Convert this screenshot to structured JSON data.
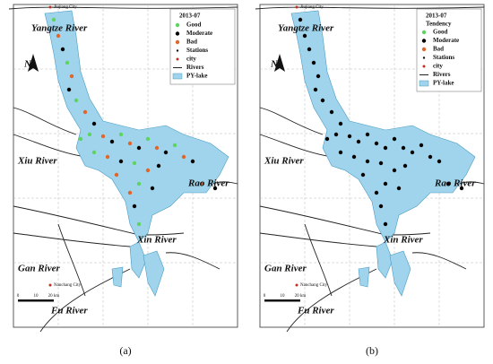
{
  "panels": [
    {
      "label": "(a)",
      "legend_title": "2013-07",
      "legend": [
        "Good",
        "Moderate",
        "Bad",
        "Stations",
        "city",
        "Rivers",
        "PY-lake"
      ],
      "rivers": [
        "Yangtze River",
        "Xiu River",
        "Rao River",
        "Xin River",
        "Gan River",
        "Fu River"
      ],
      "cities": [
        "Jiujiang City",
        "Nanchang City"
      ],
      "north": "N",
      "scale": [
        "0",
        "10",
        "20 km"
      ]
    },
    {
      "label": "(b)",
      "legend_title": "2013-07",
      "legend_subtitle": "Tendency",
      "legend": [
        "Good",
        "Moderate",
        "Bad",
        "Stations",
        "city",
        "Rivers",
        "PY-lake"
      ],
      "rivers": [
        "Yangtze River",
        "Xiu River",
        "Rao River",
        "Xin River",
        "Gan River",
        "Fu River"
      ],
      "cities": [
        "Jiujiang City",
        "Nanchang City"
      ],
      "north": "N",
      "scale": [
        "0",
        "10",
        "20 km"
      ]
    }
  ]
}
